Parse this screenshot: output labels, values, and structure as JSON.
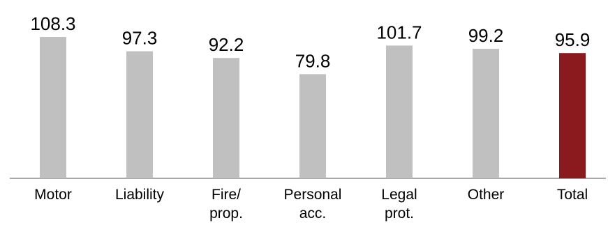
{
  "chart_data": {
    "type": "bar",
    "title": "",
    "xlabel": "",
    "ylabel": "",
    "categories": [
      [
        "Motor"
      ],
      [
        "Liability"
      ],
      [
        "Fire/",
        "prop."
      ],
      [
        "Personal",
        "acc."
      ],
      [
        "Legal",
        "prot."
      ],
      [
        "Other"
      ],
      [
        "Total"
      ]
    ],
    "values": [
      108.3,
      97.3,
      92.2,
      79.8,
      101.7,
      99.2,
      95.9
    ],
    "value_labels": [
      "108.3",
      "97.3",
      "92.2",
      "79.8",
      "101.7",
      "99.2",
      "95.9"
    ],
    "colors": [
      "#c0c0c0",
      "#c0c0c0",
      "#c0c0c0",
      "#c0c0c0",
      "#c0c0c0",
      "#c0c0c0",
      "#8b1a1e"
    ],
    "ylim": [
      0,
      108.3
    ],
    "grid": false,
    "legend": "none"
  }
}
